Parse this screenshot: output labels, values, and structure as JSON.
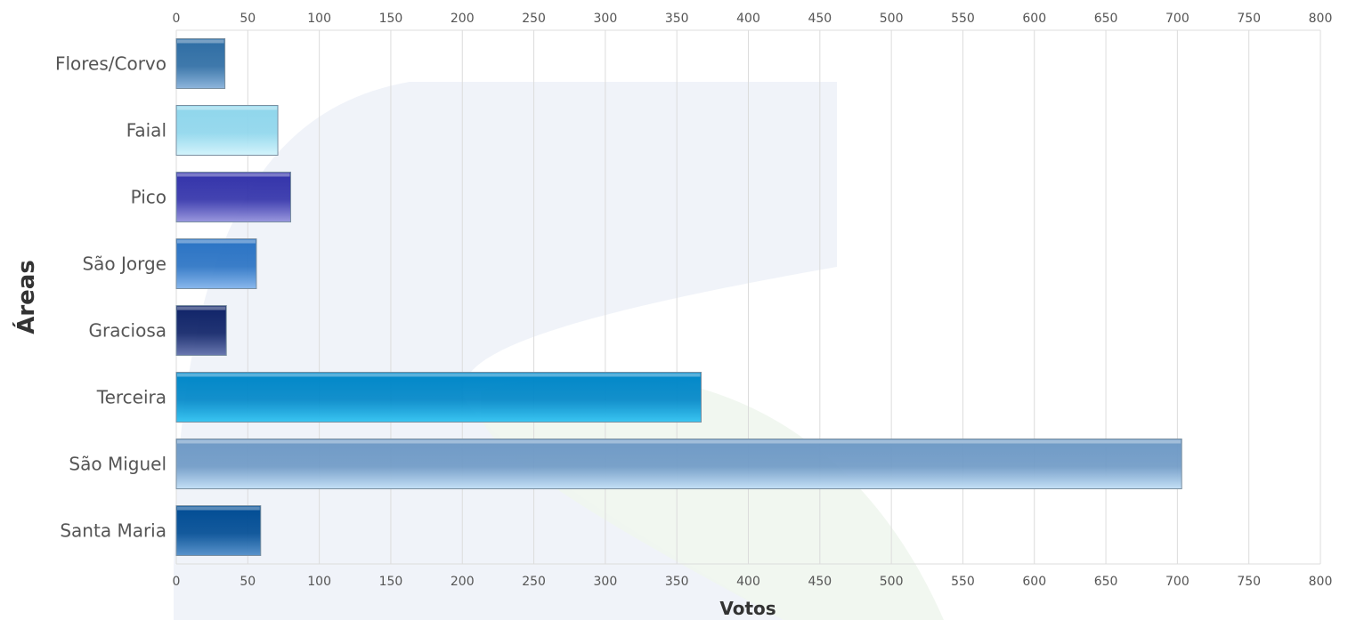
{
  "chart_data": {
    "type": "bar",
    "orientation": "horizontal",
    "title": "",
    "xlabel": "Votos",
    "ylabel": "Áreas",
    "xlim": [
      0,
      800
    ],
    "x_ticks": [
      0,
      50,
      100,
      150,
      200,
      250,
      300,
      350,
      400,
      450,
      500,
      550,
      600,
      650,
      700,
      750,
      800
    ],
    "x_tick_positions": "top-and-bottom",
    "grid": true,
    "legend": "none",
    "categories": [
      "Flores/Corvo",
      "Faial",
      "Pico",
      "São Jorge",
      "Graciosa",
      "Terceira",
      "São Miguel",
      "Santa Maria"
    ],
    "values": [
      34,
      71,
      80,
      56,
      35,
      367,
      703,
      59
    ],
    "colors": [
      [
        "#2e6da4",
        "#8fb6dc"
      ],
      [
        "#8fd6ec",
        "#d4f4fc"
      ],
      [
        "#3333aa",
        "#9a98de"
      ],
      [
        "#2a73c4",
        "#8ab8ec"
      ],
      [
        "#0f2368",
        "#6a78b0"
      ],
      [
        "#0087c8",
        "#3ac6f2"
      ],
      [
        "#6f9ac6",
        "#c4e0f6"
      ],
      [
        "#004c94",
        "#5a94cc"
      ]
    ]
  }
}
